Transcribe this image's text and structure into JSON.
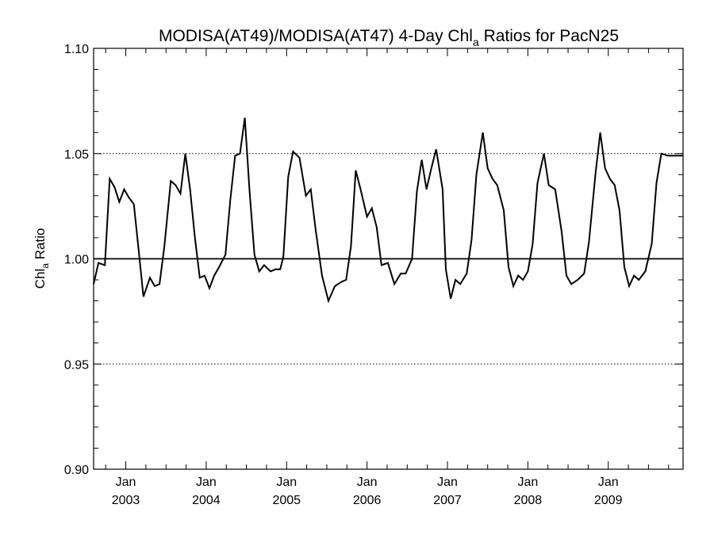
{
  "chart_data": {
    "type": "line",
    "title": {
      "main": "MODISA(AT49)/MODISA(AT47) 4-Day Chl",
      "subscript": "a",
      "suffix": " Ratios for PacN25"
    },
    "ylabel": {
      "main": "Chl",
      "subscript": "a",
      "suffix": " Ratio"
    },
    "xlabel": "",
    "xlim": [
      2002.6,
      2009.93
    ],
    "ylim": [
      0.9,
      1.1
    ],
    "y_ticks": [
      {
        "value": 0.9,
        "label": "0.90"
      },
      {
        "value": 0.95,
        "label": "0.95"
      },
      {
        "value": 1.0,
        "label": "1.00"
      },
      {
        "value": 1.05,
        "label": "1.05"
      },
      {
        "value": 1.1,
        "label": "1.10"
      }
    ],
    "x_ticks": [
      {
        "value": 2003,
        "month": "Jan",
        "year": "2003"
      },
      {
        "value": 2004,
        "month": "Jan",
        "year": "2004"
      },
      {
        "value": 2005,
        "month": "Jan",
        "year": "2005"
      },
      {
        "value": 2006,
        "month": "Jan",
        "year": "2006"
      },
      {
        "value": 2007,
        "month": "Jan",
        "year": "2007"
      },
      {
        "value": 2008,
        "month": "Jan",
        "year": "2008"
      },
      {
        "value": 2009,
        "month": "Jan",
        "year": "2009"
      }
    ],
    "dotted_gridlines_y": [
      0.95,
      1.05,
      1.1
    ],
    "reference_line_y": 1.0,
    "series": [
      {
        "color": "#000000",
        "x": [
          2002.6,
          2002.66,
          2002.74,
          2002.8,
          2002.86,
          2002.92,
          2002.98,
          2003.04,
          2003.1,
          2003.16,
          2003.22,
          2003.3,
          2003.36,
          2003.42,
          2003.48,
          2003.56,
          2003.62,
          2003.68,
          2003.74,
          2003.8,
          2003.86,
          2003.92,
          2003.98,
          2004.04,
          2004.1,
          2004.16,
          2004.24,
          2004.3,
          2004.36,
          2004.42,
          2004.48,
          2004.54,
          2004.6,
          2004.66,
          2004.72,
          2004.8,
          2004.86,
          2004.92,
          2004.96,
          2005.02,
          2005.08,
          2005.16,
          2005.24,
          2005.3,
          2005.36,
          2005.44,
          2005.52,
          2005.6,
          2005.68,
          2005.74,
          2005.8,
          2005.86,
          2005.92,
          2006.0,
          2006.06,
          2006.12,
          2006.18,
          2006.26,
          2006.34,
          2006.42,
          2006.48,
          2006.56,
          2006.62,
          2006.68,
          2006.74,
          2006.8,
          2006.86,
          2006.94,
          2006.98,
          2007.04,
          2007.1,
          2007.16,
          2007.24,
          2007.3,
          2007.36,
          2007.44,
          2007.5,
          2007.56,
          2007.62,
          2007.7,
          2007.76,
          2007.82,
          2007.88,
          2007.94,
          2008.0,
          2008.06,
          2008.12,
          2008.2,
          2008.26,
          2008.34,
          2008.42,
          2008.48,
          2008.54,
          2008.62,
          2008.7,
          2008.76,
          2008.84,
          2008.9,
          2008.96,
          2009.02,
          2009.08,
          2009.14,
          2009.2,
          2009.26,
          2009.32,
          2009.38,
          2009.46,
          2009.54,
          2009.6,
          2009.66,
          2009.74,
          2009.82,
          2009.93
        ],
        "values": [
          0.988,
          0.998,
          0.997,
          1.038,
          1.034,
          1.027,
          1.033,
          1.029,
          1.026,
          1.004,
          0.982,
          0.991,
          0.987,
          0.988,
          1.006,
          1.037,
          1.035,
          1.031,
          1.05,
          1.033,
          1.01,
          0.991,
          0.992,
          0.986,
          0.992,
          0.996,
          1.002,
          1.028,
          1.049,
          1.05,
          1.067,
          1.032,
          1.002,
          0.994,
          0.997,
          0.994,
          0.995,
          0.995,
          1.001,
          1.039,
          1.051,
          1.048,
          1.03,
          1.033,
          1.014,
          0.992,
          0.98,
          0.987,
          0.989,
          0.99,
          1.006,
          1.042,
          1.033,
          1.02,
          1.024,
          1.015,
          0.997,
          0.998,
          0.988,
          0.993,
          0.993,
          1.0,
          1.032,
          1.047,
          1.033,
          1.043,
          1.052,
          1.033,
          0.995,
          0.981,
          0.99,
          0.988,
          0.993,
          1.009,
          1.04,
          1.06,
          1.043,
          1.038,
          1.035,
          1.023,
          0.996,
          0.987,
          0.992,
          0.99,
          0.994,
          1.007,
          1.036,
          1.05,
          1.035,
          1.033,
          1.013,
          0.992,
          0.988,
          0.99,
          0.993,
          1.008,
          1.04,
          1.06,
          1.043,
          1.038,
          1.035,
          1.023,
          0.996,
          0.987,
          0.992,
          0.99,
          0.994,
          1.007,
          1.036,
          1.05,
          1.049,
          1.049,
          1.049
        ]
      }
    ]
  }
}
